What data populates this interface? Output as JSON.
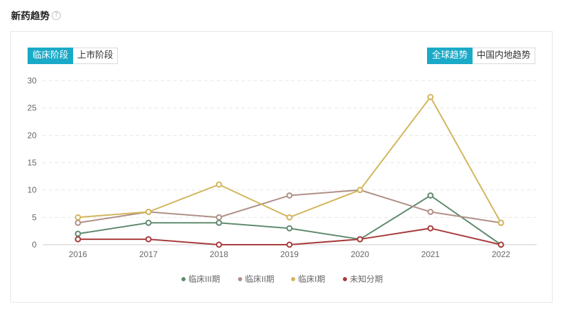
{
  "page": {
    "title": "新药趋势",
    "help_icon": "question-circle-icon"
  },
  "tabs_left": [
    "临床阶段",
    "上市阶段"
  ],
  "tabs_right": [
    "全球趋势",
    "中国内地趋势"
  ],
  "colors": {
    "accent": "#1aaac8",
    "series": [
      "#5f8a6e",
      "#ae8f86",
      "#d2b55b",
      "#a83a3a"
    ]
  },
  "chart_data": {
    "type": "line",
    "x": [
      "2016",
      "2017",
      "2018",
      "2019",
      "2020",
      "2021",
      "2022"
    ],
    "ylim": [
      0,
      30
    ],
    "yticks": [
      0,
      5,
      10,
      15,
      20,
      25,
      30
    ],
    "grid": true,
    "legend": "bottom-center",
    "series": [
      {
        "name": "临床III期",
        "color": "#5f8a6e",
        "values": [
          2,
          4,
          4,
          3,
          1,
          9,
          0
        ]
      },
      {
        "name": "临床II期",
        "color": "#ae8f86",
        "values": [
          4,
          6,
          5,
          9,
          10,
          6,
          4
        ]
      },
      {
        "name": "临床I期",
        "color": "#d2b55b",
        "values": [
          5,
          6,
          11,
          5,
          10,
          27,
          4
        ]
      },
      {
        "name": "未知分期",
        "color": "#a83a3a",
        "values": [
          1,
          1,
          0,
          0,
          1,
          3,
          0
        ]
      }
    ]
  }
}
